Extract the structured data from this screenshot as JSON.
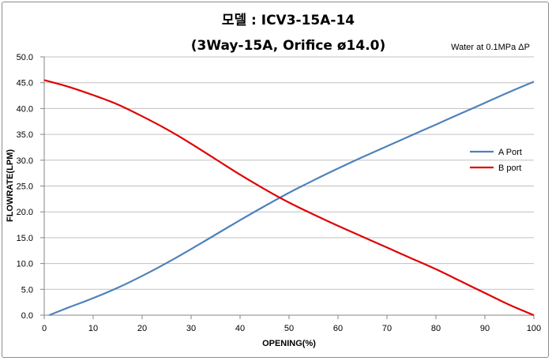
{
  "chart_data": {
    "type": "line",
    "title": "모델 : ICV3-15A-14",
    "subtitle": "(3Way-15A, Orifice ø14.0)",
    "annotation": "Water at 0.1MPa ΔP",
    "xlabel": "OPENING(%)",
    "ylabel": "FLOWRATE(LPM)",
    "xlim": [
      0,
      100
    ],
    "ylim": [
      0,
      50
    ],
    "x_ticks": [
      0,
      10,
      20,
      30,
      40,
      50,
      60,
      70,
      80,
      90,
      100
    ],
    "y_ticks": [
      "0.0",
      "5.0",
      "10.0",
      "15.0",
      "20.0",
      "25.0",
      "30.0",
      "35.0",
      "40.0",
      "45.0",
      "50.0"
    ],
    "grid": "horizontal",
    "legend_position": "right",
    "series": [
      {
        "name": "A Port",
        "color": "#4f81bd",
        "x": [
          1,
          5,
          10,
          15,
          20,
          25,
          30,
          35,
          40,
          45,
          50,
          55,
          60,
          65,
          70,
          75,
          80,
          85,
          90,
          95,
          100
        ],
        "y": [
          0.0,
          1.5,
          3.3,
          5.3,
          7.6,
          10.1,
          12.8,
          15.6,
          18.4,
          21.1,
          23.7,
          26.1,
          28.4,
          30.6,
          32.7,
          34.8,
          36.9,
          39.0,
          41.1,
          43.2,
          45.2
        ]
      },
      {
        "name": "B port",
        "color": "#e00000",
        "x": [
          0,
          5,
          10,
          15,
          20,
          25,
          30,
          35,
          40,
          45,
          50,
          55,
          60,
          65,
          70,
          75,
          80,
          85,
          90,
          95,
          100
        ],
        "y": [
          45.5,
          44.2,
          42.6,
          40.8,
          38.5,
          36.0,
          33.2,
          30.2,
          27.2,
          24.4,
          21.8,
          19.5,
          17.3,
          15.2,
          13.1,
          11.0,
          8.9,
          6.6,
          4.3,
          2.0,
          0.0
        ]
      }
    ]
  }
}
